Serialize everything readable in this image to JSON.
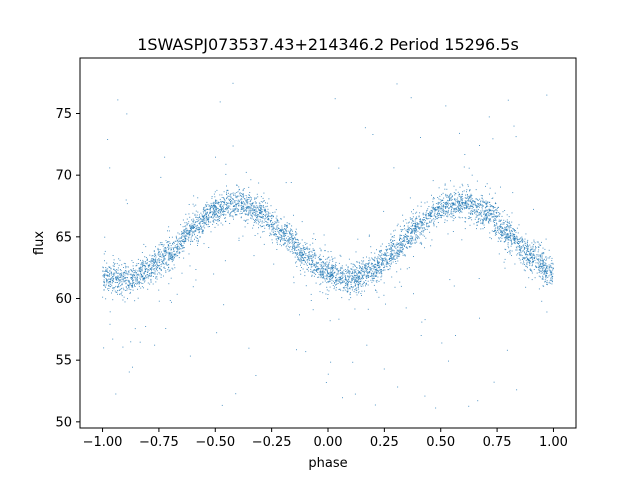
{
  "chart_data": {
    "type": "scatter",
    "title": "1SWASPJ073537.43+214346.2 Period 15296.5s",
    "xlabel": "phase",
    "ylabel": "flux",
    "xlim": [
      -1.1,
      1.1
    ],
    "ylim": [
      49.5,
      79.5
    ],
    "x_ticks": [
      -1.0,
      -0.75,
      -0.5,
      -0.25,
      0.0,
      0.25,
      0.5,
      0.75,
      1.0
    ],
    "x_tick_labels": [
      "−1.00",
      "−0.75",
      "−0.50",
      "−0.25",
      "0.00",
      "0.25",
      "0.50",
      "0.75",
      "1.00"
    ],
    "y_ticks": [
      50,
      55,
      60,
      65,
      70,
      75
    ],
    "y_tick_labels": [
      "50",
      "55",
      "60",
      "65",
      "70",
      "75"
    ],
    "grid": false,
    "series": [
      {
        "color": "#1f77b4",
        "curve_phase": [
          -1.0,
          -0.9,
          -0.8,
          -0.7,
          -0.6,
          -0.5,
          -0.4,
          -0.3,
          -0.2,
          -0.1,
          0.0,
          0.1,
          0.2,
          0.3,
          0.4,
          0.5,
          0.6,
          0.7,
          0.8,
          0.9,
          1.0
        ],
        "curve_flux": [
          61.8,
          61.5,
          62.3,
          63.6,
          65.6,
          67.2,
          67.8,
          67.0,
          65.2,
          63.4,
          62.0,
          61.5,
          62.3,
          63.9,
          65.8,
          67.3,
          67.8,
          67.0,
          65.2,
          63.4,
          62.0
        ],
        "scatter_sigma": 0.6,
        "outlier_range": [
          51,
          77.5
        ]
      }
    ]
  }
}
